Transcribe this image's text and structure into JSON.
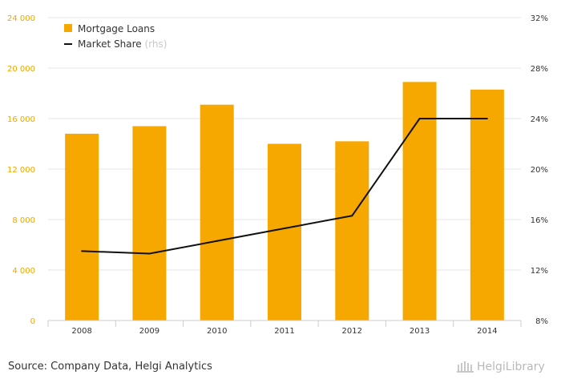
{
  "chart_data": {
    "type": "bar",
    "categories": [
      "2008",
      "2009",
      "2010",
      "2011",
      "2012",
      "2013",
      "2014"
    ],
    "series": [
      {
        "name": "Mortgage Loans",
        "type": "bar",
        "axis": "left",
        "values": [
          14800,
          15400,
          17100,
          14000,
          14200,
          18900,
          18300
        ],
        "color": "#f7a800"
      },
      {
        "name": "Market Share",
        "type": "line",
        "axis": "right",
        "values": [
          13.5,
          13.3,
          14.3,
          15.3,
          16.3,
          24.0,
          24.0
        ],
        "color": "#111111"
      }
    ],
    "left_axis": {
      "ylim": [
        0,
        24000
      ],
      "ticks": [
        "0",
        "4 000",
        "8 000",
        "12 000",
        "16 000",
        "20 000",
        "24 000"
      ]
    },
    "right_axis": {
      "ylim": [
        8,
        32
      ],
      "ticks": [
        "8%",
        "12%",
        "16%",
        "20%",
        "24%",
        "28%",
        "32%"
      ]
    },
    "legend": [
      {
        "label": "Mortgage Loans",
        "suffix": ""
      },
      {
        "label": "Market Share",
        "suffix": "(rhs)"
      }
    ],
    "legend_position": "top-left",
    "grid": true
  },
  "footer": {
    "source": "Source: Company Data, Helgi Analytics",
    "brand": "HelgiLibrary"
  },
  "colors": {
    "accent": "#f7a800",
    "axis_left": "#f0a500",
    "text": "#333333"
  }
}
